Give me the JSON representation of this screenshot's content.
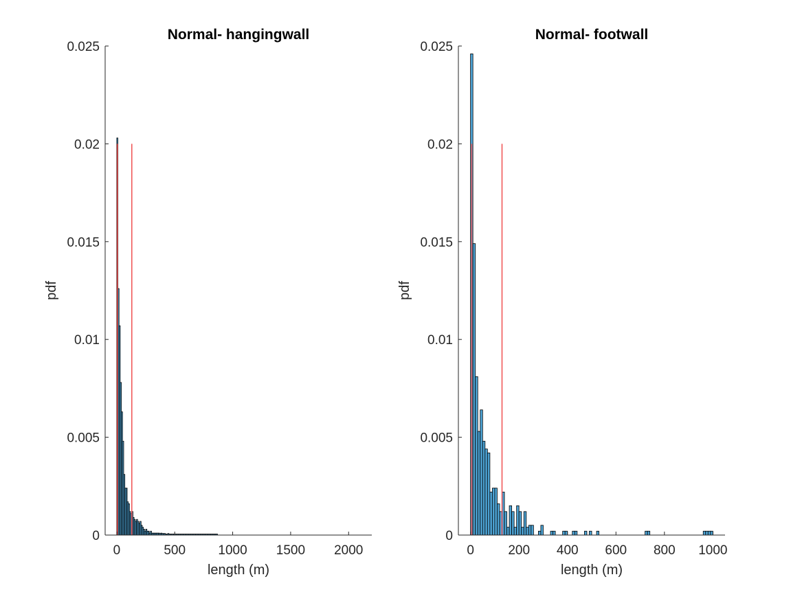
{
  "chart_data": [
    {
      "type": "histogram",
      "title": "Normal- hangingwall",
      "xlabel": "length (m)",
      "ylabel": "pdf",
      "xlim": [
        -100,
        2200
      ],
      "ylim": [
        0,
        0.025
      ],
      "xticks": [
        0,
        500,
        1000,
        1500,
        2000
      ],
      "xtick_labels": [
        "0",
        "500",
        "1000",
        "1500",
        "2000"
      ],
      "yticks": [
        0,
        0.005,
        0.01,
        0.015,
        0.02,
        0.025
      ],
      "ytick_labels": [
        "0",
        "0.005",
        "0.01",
        "0.015",
        "0.02",
        "0.025"
      ],
      "bin_width": 10,
      "bin_start": 0,
      "values": [
        0.0203,
        0.0126,
        0.0107,
        0.0078,
        0.0063,
        0.0048,
        0.0031,
        0.0024,
        0.0024,
        0.0017,
        0.0016,
        0.0012,
        0.0011,
        0.0012,
        0.0009,
        0.0008,
        0.0007,
        0.0008,
        0.0007,
        0.0006,
        0.0007,
        0.0005,
        0.0004,
        0.0003,
        0.0002,
        0.0003,
        0.0002,
        0.0002,
        0.0001,
        0.0002,
        0.0001,
        0.0001,
        0.0001,
        0.0001,
        0.0001,
        0.0001,
        0.0001,
        8e-05,
        0.0001,
        8e-05,
        8e-05,
        8e-05,
        5e-05,
        5e-05,
        8e-05,
        5e-05,
        5e-05,
        5e-05,
        5e-05,
        5e-05,
        5e-05,
        5e-05,
        5e-05,
        5e-05,
        5e-05,
        5e-05,
        5e-05,
        5e-05,
        5e-05,
        5e-05,
        5e-05,
        5e-05,
        5e-05,
        5e-05,
        5e-05,
        5e-05,
        5e-05,
        5e-05,
        5e-05,
        5e-05,
        5e-05,
        5e-05,
        5e-05,
        5e-05,
        5e-05,
        5e-05,
        5e-05,
        5e-05,
        5e-05,
        5e-05,
        5e-05,
        5e-05,
        5e-05,
        5e-05,
        5e-05,
        5e-05,
        5e-05
      ],
      "vlines": [
        {
          "x": 5,
          "y_max": 0.02
        },
        {
          "x": 130,
          "y_max": 0.02
        }
      ],
      "colors": {
        "bar_fill": "#4da3d4",
        "bar_edge": "#000000",
        "vline": "#f05050"
      }
    },
    {
      "type": "histogram",
      "title": "Normal- footwall",
      "xlabel": "length (m)",
      "ylabel": "pdf",
      "xlim": [
        -50,
        1050
      ],
      "ylim": [
        0,
        0.025
      ],
      "xticks": [
        0,
        200,
        400,
        600,
        800,
        1000
      ],
      "xtick_labels": [
        "0",
        "200",
        "400",
        "600",
        "800",
        "1000"
      ],
      "yticks": [
        0,
        0.005,
        0.01,
        0.015,
        0.02,
        0.025
      ],
      "ytick_labels": [
        "0",
        "0.005",
        "0.01",
        "0.015",
        "0.02",
        "0.025"
      ],
      "bin_width": 10,
      "bin_start": 0,
      "values": [
        0.0246,
        0.0149,
        0.0081,
        0.0053,
        0.0064,
        0.0048,
        0.0044,
        0.0042,
        0.0022,
        0.0024,
        0.0024,
        0.0016,
        0.0012,
        0.0022,
        0.0012,
        0.0004,
        0.0015,
        0.0012,
        0.0004,
        0.0015,
        0.0012,
        0.0004,
        0.0012,
        0.0004,
        0.0005,
        0.0005,
        0,
        0,
        0.0002,
        0.0005,
        0,
        0,
        0,
        0.0002,
        0.0002,
        0,
        0,
        0,
        0.0002,
        0.0002,
        0,
        0,
        0.0002,
        0.0002,
        0,
        0,
        0,
        0.0002,
        0,
        0.0002,
        0,
        0,
        0.0002,
        0,
        0,
        0,
        0,
        0,
        0,
        0,
        0,
        0,
        0,
        0,
        0,
        0,
        0,
        0,
        0,
        0,
        0,
        0,
        0.0002,
        0.0002,
        0,
        0,
        0,
        0,
        0,
        0,
        0,
        0,
        0,
        0,
        0,
        0,
        0,
        0,
        0,
        0,
        0,
        0,
        0,
        0,
        0,
        0,
        0.0002,
        0.0002,
        0.0002,
        0.0002
      ],
      "vlines": [
        {
          "x": 5,
          "y_max": 0.02
        },
        {
          "x": 130,
          "y_max": 0.02
        }
      ],
      "colors": {
        "bar_fill": "#4da3d4",
        "bar_edge": "#000000",
        "vline": "#f05050"
      }
    }
  ]
}
